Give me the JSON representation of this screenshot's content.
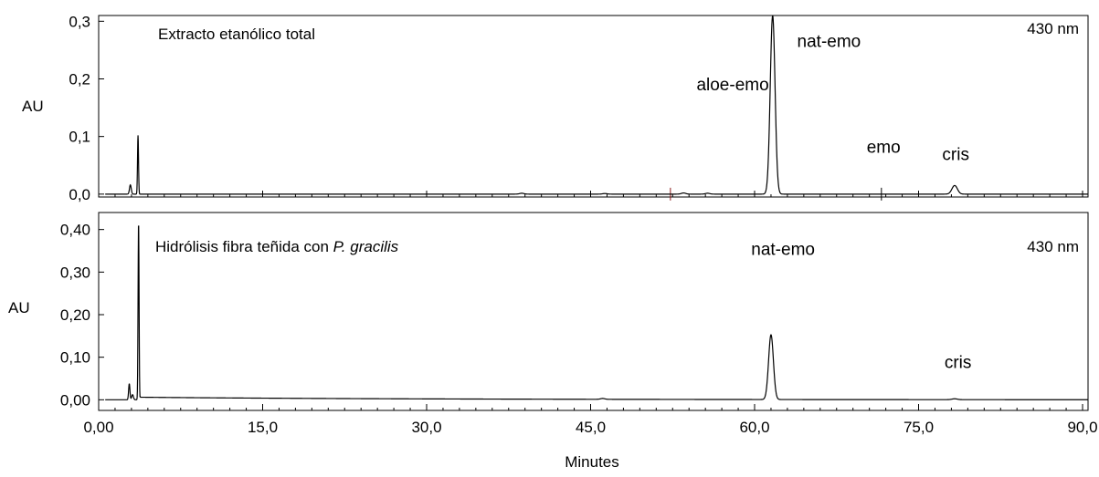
{
  "chart_data": {
    "type": "line",
    "xlabel": "Minutes",
    "xlim": [
      0,
      90.5
    ],
    "x_ticks": [
      "0,00",
      "15,0",
      "30,0",
      "45,0",
      "60,0",
      "75,0",
      "90,0"
    ],
    "x_tick_values": [
      0,
      15,
      30,
      45,
      60,
      75,
      90
    ],
    "panels": [
      {
        "title": "Extracto etanólico total",
        "wavelength": "430 nm",
        "ylabel": "AU",
        "ylim": [
          -0.005,
          0.31
        ],
        "y_ticks": [
          "0,0",
          "0,1",
          "0,2",
          "0,3"
        ],
        "y_tick_values": [
          0,
          0.1,
          0.2,
          0.3
        ],
        "color": "#000000",
        "peaks": [
          {
            "t": 2.9,
            "h": 0.016,
            "w": 0.08
          },
          {
            "t": 3.6,
            "h": 0.102,
            "w": 0.045
          },
          {
            "t": 38.7,
            "h": 0.0015,
            "w": 0.2
          },
          {
            "t": 46.3,
            "h": 0.001,
            "w": 0.2
          },
          {
            "t": 53.5,
            "h": 0.002,
            "w": 0.2
          },
          {
            "t": 55.7,
            "h": 0.0015,
            "w": 0.2
          },
          {
            "t": 61.65,
            "h": 0.31,
            "w": 0.22
          },
          {
            "t": 78.3,
            "h": 0.015,
            "w": 0.25
          }
        ],
        "annotations": [
          {
            "text": "aloe-emo",
            "x": 58.0,
            "y": 0.18
          },
          {
            "text": "nat-emo",
            "x": 66.8,
            "y": 0.255
          },
          {
            "text": "emo",
            "x": 71.8,
            "y": 0.072
          },
          {
            "text": "cris",
            "x": 78.4,
            "y": 0.059
          }
        ],
        "markers": [
          52.3,
          71.6
        ]
      },
      {
        "title": "Hidrólisis fibra teñida con ",
        "title_italic": "P. gracilis",
        "wavelength": "430 nm",
        "ylabel": "AU",
        "ylim": [
          -0.025,
          0.44
        ],
        "y_ticks": [
          "0,00",
          "0,10",
          "0,20",
          "0,30",
          "0,40"
        ],
        "y_tick_values": [
          0,
          0.1,
          0.2,
          0.3,
          0.4
        ],
        "color": "#000000",
        "peaks": [
          {
            "t": 2.8,
            "h": 0.038,
            "w": 0.06
          },
          {
            "t": 3.1,
            "h": 0.012,
            "w": 0.08
          },
          {
            "t": 3.65,
            "h": 0.418,
            "w": 0.045
          },
          {
            "t": 46.1,
            "h": 0.002,
            "w": 0.2
          },
          {
            "t": 61.5,
            "h": 0.152,
            "w": 0.22
          },
          {
            "t": 78.3,
            "h": 0.002,
            "w": 0.25
          }
        ],
        "annotations": [
          {
            "text": "nat-emo",
            "x": 62.6,
            "y": 0.34
          },
          {
            "text": "cris",
            "x": 78.6,
            "y": 0.075
          }
        ]
      }
    ]
  }
}
